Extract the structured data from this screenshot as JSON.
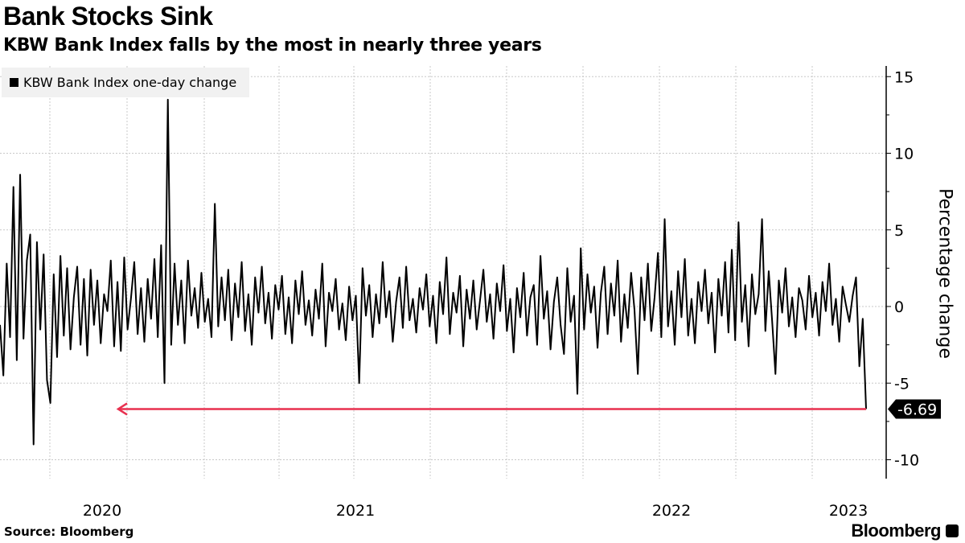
{
  "header": {
    "title": "Bank Stocks Sink",
    "subtitle": "KBW Bank Index falls by the most in nearly three years"
  },
  "footer": {
    "source": "Source: Bloomberg",
    "brand": "Bloomberg"
  },
  "chart_data": {
    "type": "line",
    "title": "Bank Stocks Sink",
    "ylabel": "Percentage change",
    "ylim": [
      -11,
      16
    ],
    "yticks": [
      15,
      10,
      5,
      0,
      -5,
      -10
    ],
    "xticks": [
      "2020",
      "2021",
      "2022",
      "2023"
    ],
    "grid": true,
    "legend_position": "top-left",
    "series": [
      {
        "name": "KBW Bank Index one-day change",
        "color": "#000000",
        "values": [
          -1.2,
          -4.5,
          2.8,
          -2.0,
          7.8,
          -3.5,
          8.6,
          -2.1,
          3.0,
          4.7,
          -9.0,
          4.2,
          -1.5,
          3.4,
          -4.8,
          -6.3,
          2.1,
          -3.3,
          3.3,
          -1.9,
          2.5,
          -2.8,
          0.6,
          2.6,
          -2.5,
          1.8,
          -3.2,
          2.4,
          -1.2,
          1.7,
          -2.4,
          0.8,
          -0.3,
          3.0,
          -2.6,
          1.6,
          -2.9,
          3.2,
          -1.5,
          0.5,
          2.9,
          -1.8,
          1.2,
          -2.3,
          1.8,
          -0.8,
          3.1,
          -2.0,
          4.0,
          -5.0,
          13.5,
          -2.5,
          2.8,
          -1.2,
          1.7,
          -2.4,
          3.0,
          -0.6,
          1.2,
          -1.4,
          2.2,
          -1.0,
          0.5,
          -2.0,
          6.7,
          -1.3,
          1.9,
          -0.9,
          2.4,
          -2.2,
          1.5,
          -0.7,
          2.9,
          -1.6,
          0.8,
          -2.5,
          1.9,
          -0.4,
          2.6,
          -1.1,
          0.9,
          -2.1,
          1.4,
          -0.2,
          2.0,
          -1.8,
          0.6,
          -2.4,
          1.7,
          -0.5,
          2.3,
          -1.2,
          0.4,
          -1.9,
          1.1,
          -0.8,
          2.8,
          -2.6,
          0.9,
          -0.3,
          1.8,
          -1.5,
          0.2,
          -2.2,
          1.3,
          -0.9,
          0.7,
          -5.0,
          2.5,
          -0.6,
          1.4,
          -2.0,
          0.8,
          -1.1,
          2.9,
          -0.7,
          1.0,
          -2.3,
          0.3,
          1.9,
          -1.4,
          2.6,
          -0.9,
          0.5,
          -1.7,
          1.2,
          -0.2,
          2.1,
          -1.3,
          0.7,
          -2.4,
          1.6,
          -0.5,
          3.2,
          -1.8,
          0.9,
          -0.4,
          2.0,
          -2.6,
          1.1,
          -0.8,
          1.7,
          -1.5,
          0.4,
          2.4,
          -1.0,
          0.8,
          -2.1,
          1.5,
          -0.3,
          2.7,
          -1.6,
          0.5,
          -3.0,
          1.2,
          -0.7,
          2.2,
          -1.9,
          0.6,
          1.4,
          -2.5,
          3.3,
          -0.8,
          1.0,
          -2.8,
          0.3,
          1.9,
          -1.2,
          -3.1,
          2.5,
          -1.0,
          0.7,
          -5.7,
          3.8,
          -1.5,
          2.1,
          -0.4,
          1.3,
          -2.7,
          0.9,
          2.6,
          -1.8,
          1.5,
          -0.6,
          3.0,
          -2.3,
          0.8,
          -1.4,
          2.2,
          -0.2,
          -4.4,
          1.9,
          -0.9,
          2.8,
          -1.6,
          0.6,
          3.5,
          -2.0,
          5.7,
          -1.3,
          1.0,
          -2.5,
          2.3,
          -0.7,
          3.1,
          -1.9,
          0.5,
          -2.4,
          1.6,
          -0.3,
          2.4,
          -1.1,
          0.9,
          -3.0,
          1.8,
          -0.6,
          2.9,
          -1.7,
          3.7,
          -2.2,
          5.5,
          -1.0,
          1.4,
          -2.6,
          2.1,
          -0.5,
          0.8,
          5.7,
          -1.6,
          2.3,
          -0.9,
          -4.4,
          1.7,
          -0.4,
          2.5,
          -1.3,
          0.6,
          -2.0,
          1.2,
          0.4,
          -1.5,
          2.0,
          -0.7,
          0.9,
          -1.9,
          1.6,
          -0.3,
          2.8,
          -1.2,
          0.5,
          -2.3,
          1.3,
          0.1,
          -1.0,
          0.7,
          1.9,
          -3.9,
          -0.8,
          -6.69
        ]
      }
    ],
    "annotations": [
      {
        "label": "-6.69",
        "value": -6.69,
        "color": "#000000",
        "arrow_color": "#e8304f"
      }
    ]
  }
}
